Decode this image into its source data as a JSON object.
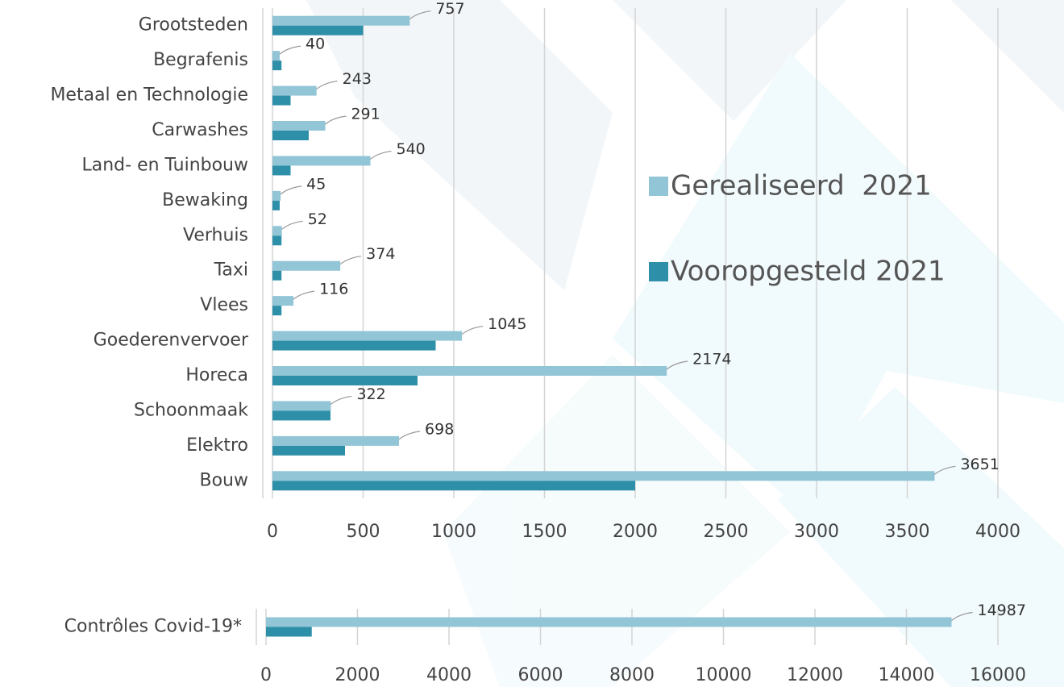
{
  "chart_data": [
    {
      "type": "barh",
      "categories": [
        "Grootsteden",
        "Begrafenis",
        "Metaal en Technologie",
        "Carwashes",
        "Land- en Tuinbouw",
        "Bewaking",
        "Verhuis",
        "Taxi",
        "Vlees",
        "Goederenvervoer",
        "Horeca",
        "Schoonmaak",
        "Elektro",
        "Bouw"
      ],
      "series": [
        {
          "name": "Gerealiseerd  2021",
          "color": "#92c5d6",
          "values": [
            757,
            40,
            243,
            291,
            540,
            45,
            52,
            374,
            116,
            1045,
            2174,
            322,
            698,
            3651
          ],
          "data_labels": true
        },
        {
          "name": "Vooropgesteld 2021",
          "color": "#2e8fa8",
          "values": [
            500,
            50,
            100,
            200,
            100,
            40,
            50,
            50,
            50,
            900,
            800,
            320,
            400,
            2000
          ]
        }
      ],
      "xlim": [
        0,
        4000
      ],
      "xticks": [
        0,
        500,
        1000,
        1500,
        2000,
        2500,
        3000,
        3500,
        4000
      ],
      "grid": true,
      "legend": "right"
    },
    {
      "type": "barh",
      "categories": [
        "Contrôles Covid-19*"
      ],
      "series": [
        {
          "color": "#92c5d6",
          "values": [
            14987
          ],
          "data_labels": true
        },
        {
          "color": "#2e8fa8",
          "values": [
            1000
          ]
        }
      ],
      "xlim": [
        0,
        16000
      ],
      "xticks": [
        0,
        2000,
        4000,
        6000,
        8000,
        10000,
        12000,
        14000,
        16000
      ],
      "grid": true
    }
  ]
}
